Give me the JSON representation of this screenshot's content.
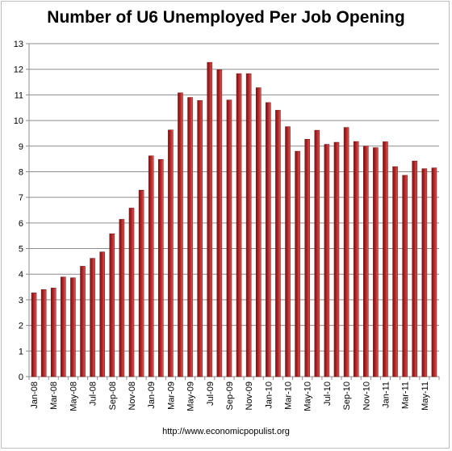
{
  "chart_data": {
    "type": "bar",
    "title": "Number of U6 Unemployed Per Job Opening",
    "xlabel": "",
    "ylabel": "",
    "ylim": [
      0,
      13
    ],
    "yticks": [
      0,
      1,
      2,
      3,
      4,
      5,
      6,
      7,
      8,
      9,
      10,
      11,
      12,
      13
    ],
    "grid": true,
    "legend": "none",
    "bar_color": "#b22222",
    "categories": [
      "Jan-08",
      "Feb-08",
      "Mar-08",
      "Apr-08",
      "May-08",
      "Jun-08",
      "Jul-08",
      "Aug-08",
      "Sep-08",
      "Oct-08",
      "Nov-08",
      "Dec-08",
      "Jan-09",
      "Feb-09",
      "Mar-09",
      "Apr-09",
      "May-09",
      "Jun-09",
      "Jul-09",
      "Aug-09",
      "Sep-09",
      "Oct-09",
      "Nov-09",
      "Dec-09",
      "Jan-10",
      "Feb-10",
      "Mar-10",
      "Apr-10",
      "May-10",
      "Jun-10",
      "Jul-10",
      "Aug-10",
      "Sep-10",
      "Oct-10",
      "Nov-10",
      "Dec-10",
      "Jan-11",
      "Feb-11",
      "Mar-11",
      "Apr-11",
      "May-11",
      "Jun-11"
    ],
    "values": [
      3.27,
      3.4,
      3.46,
      3.89,
      3.86,
      4.31,
      4.62,
      4.87,
      5.58,
      6.14,
      6.58,
      7.28,
      8.62,
      8.48,
      9.63,
      11.08,
      10.9,
      10.78,
      12.27,
      11.98,
      10.8,
      11.83,
      11.83,
      11.28,
      10.7,
      10.4,
      9.76,
      8.8,
      9.27,
      9.62,
      9.07,
      9.15,
      9.73,
      9.18,
      9.0,
      8.94,
      9.17,
      8.2,
      7.86,
      8.42,
      8.12,
      8.15
    ],
    "tick_labels": [
      "Jan-08",
      "Mar-08",
      "May-08",
      "Jul-08",
      "Sep-08",
      "Nov-08",
      "Jan-09",
      "Mar-09",
      "May-09",
      "Jul-09",
      "Sep-09",
      "Nov-09",
      "Jan-10",
      "Mar-10",
      "May-10",
      "Jul-10",
      "Sep-10",
      "Nov-10",
      "Jan-11",
      "Mar-11",
      "May-11"
    ]
  },
  "footer": {
    "source": "http://www.economicpopulist.org"
  }
}
